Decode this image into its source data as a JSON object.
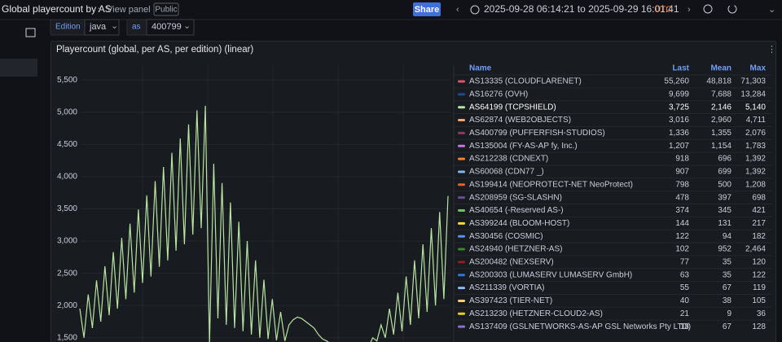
{
  "header": {
    "breadcrumb": "Global playercount by AS",
    "view": "View panel",
    "badge": "Public",
    "share": "Share",
    "time_range": "2025-09-28 06:14:21 to 2025-09-29 16:01:41",
    "timezone": "UTC"
  },
  "variables": [
    {
      "label": "Edition",
      "value": "java"
    },
    {
      "label": "as",
      "value": "400799"
    }
  ],
  "chart_data": {
    "type": "line",
    "title": "Playercount (global, per AS, per edition) (linear)",
    "series": [
      {
        "color": "#b7e4a3",
        "values": [
          1950,
          1500,
          2170,
          1650,
          2390,
          1750,
          2610,
          1850,
          2830,
          1950,
          3050,
          2100,
          3270,
          2200,
          3490,
          2350,
          3710,
          2450,
          3930,
          2600,
          4150,
          2700,
          4370,
          2850,
          4590,
          2950,
          4810,
          3100,
          5030,
          3200,
          5100,
          1400,
          4200,
          1800,
          3900,
          1700,
          3600,
          1650,
          3300,
          1600,
          3000,
          1550,
          2700,
          1500,
          2400,
          1480,
          2100,
          1460,
          1900,
          1450,
          1700,
          1780,
          1820,
          1800,
          1750,
          1700,
          1650,
          1550,
          1480,
          1450,
          1400,
          1380,
          1350,
          1330,
          1320,
          1310,
          1300,
          1300,
          1320,
          1350,
          1500,
          1450,
          1700,
          1500,
          1950,
          1550,
          2200,
          1600,
          2450,
          1700,
          2700,
          1800,
          2950,
          1900,
          3200,
          2000,
          3450,
          2100,
          3700
        ]
      }
    ],
    "ylim": [
      1440,
      5730
    ],
    "yticks": [
      {
        "value": 1500,
        "label": "1,500"
      },
      {
        "value": 2000,
        "label": "2,000"
      },
      {
        "value": 2500,
        "label": "2,500"
      },
      {
        "value": 3000,
        "label": "3,000"
      },
      {
        "value": 3500,
        "label": "3,500"
      },
      {
        "value": 4000,
        "label": "4,000"
      },
      {
        "value": 4500,
        "label": "4,500"
      },
      {
        "value": 5000,
        "label": "5,000"
      },
      {
        "value": 5500,
        "label": "5,500"
      }
    ],
    "grid": true
  },
  "legend": {
    "columns": [
      "Name",
      "Last",
      "Mean",
      "Max"
    ],
    "highlighted": 2,
    "rows": [
      {
        "color": "#e0506a",
        "name": "AS13335 (CLOUDFLARENET)",
        "last": "55,260",
        "mean": "48,818",
        "max": "71,303"
      },
      {
        "color": "#1f4a8a",
        "name": "AS16276 (OVH)",
        "last": "9,699",
        "mean": "7,688",
        "max": "13,284"
      },
      {
        "color": "#b7e4a3",
        "name": "AS64199 (TCPSHIELD)",
        "last": "3,725",
        "mean": "2,146",
        "max": "5,140"
      },
      {
        "color": "#f2a772",
        "name": "AS62874 (WEB2OBJECTS)",
        "last": "3,016",
        "mean": "2,960",
        "max": "4,711"
      },
      {
        "color": "#8a3a6a",
        "name": "AS400799 (PUFFERFISH-STUDIOS)",
        "last": "1,336",
        "mean": "1,355",
        "max": "2,076"
      },
      {
        "color": "#c27ad8",
        "name": "AS135004 (FY-AS-AP fy, Inc.)",
        "last": "1,207",
        "mean": "1,154",
        "max": "1,783"
      },
      {
        "color": "#ff7f2a",
        "name": "AS212238 (CDNEXT)",
        "last": "918",
        "mean": "696",
        "max": "1,392"
      },
      {
        "color": "#7fb8f0",
        "name": "AS60068 (CDN77 _)",
        "last": "907",
        "mean": "699",
        "max": "1,392"
      },
      {
        "color": "#e8632b",
        "name": "AS199414 (NEOPROTECT-NET NeoProtect)",
        "last": "798",
        "mean": "500",
        "max": "1,208"
      },
      {
        "color": "#6a4a9a",
        "name": "AS208959 (SG-SLASHN)",
        "last": "478",
        "mean": "397",
        "max": "698"
      },
      {
        "color": "#73bf69",
        "name": "AS40654 (-Reserved AS-)",
        "last": "374",
        "mean": "345",
        "max": "421"
      },
      {
        "color": "#fade2a",
        "name": "AS399244 (BLOOM-HOST)",
        "last": "144",
        "mean": "131",
        "max": "217"
      },
      {
        "color": "#5794f2",
        "name": "AS30456 (COSMIC)",
        "last": "122",
        "mean": "94",
        "max": "182"
      },
      {
        "color": "#37872d",
        "name": "AS24940 (HETZNER-AS)",
        "last": "102",
        "mean": "952",
        "max": "2,464"
      },
      {
        "color": "#8f1f1f",
        "name": "AS200482 (NEXSERV)",
        "last": "77",
        "mean": "35",
        "max": "120"
      },
      {
        "color": "#3274d9",
        "name": "AS200303 (LUMASERV LUMASERV GmbH)",
        "last": "63",
        "mean": "35",
        "max": "122"
      },
      {
        "color": "#8ab8ff",
        "name": "AS211339 (VORTIA)",
        "last": "55",
        "mean": "67",
        "max": "119"
      },
      {
        "color": "#ffcb7d",
        "name": "AS397423 (TIER-NET)",
        "last": "40",
        "mean": "38",
        "max": "105"
      },
      {
        "color": "#f2cc0c",
        "name": "AS213230 (HETZNER-CLOUD2-AS)",
        "last": "21",
        "mean": "9",
        "max": "36"
      },
      {
        "color": "#8f6fc8",
        "name": "AS137409 (GSLNETWORKS-AS-AP GSL Networks Pty LTD)",
        "last": "18",
        "mean": "67",
        "max": "128"
      }
    ]
  }
}
